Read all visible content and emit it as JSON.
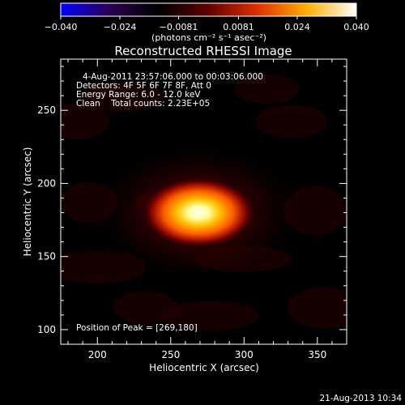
{
  "chart_data": {
    "type": "heatmap",
    "title": "Reconstructed RHESSI Image",
    "xlabel": "Heliocentric X (arcsec)",
    "ylabel": "Heliocentric Y (arcsec)",
    "xlim": [
      175,
      370
    ],
    "ylim": [
      90,
      285
    ],
    "x_ticks": [
      200,
      250,
      300,
      350
    ],
    "y_ticks": [
      100,
      150,
      200,
      250
    ],
    "colorbar": {
      "range": [
        -0.04,
        0.04
      ],
      "tick_values": [
        -0.04,
        -0.024,
        -0.0081,
        0.0081,
        0.024,
        0.04
      ],
      "tick_labels": [
        "−0.040",
        "−0.024",
        "−0.0081",
        "0.0081",
        "0.024",
        "0.040"
      ],
      "unit_label": "(photons cm⁻² s⁻¹ asec⁻²)",
      "colormap": [
        "#0000ff",
        "#2b0052",
        "#000000",
        "#600000",
        "#e03000",
        "#ffb000",
        "#ffffff"
      ]
    },
    "annotations": [
      "4-Aug-2011 23:57:06.000 to 00:03:06.000",
      "Detectors: 4F 5F 6F 7F 8F, Att 0",
      "Energy Range: 6.0 - 12.0 keV",
      "Clean    Total counts: 2.23E+05"
    ],
    "peak_label": "Position of Peak = [269,180]",
    "source": {
      "x": 269,
      "y": 180,
      "sigma_x": 16,
      "sigma_y": 10,
      "peak": 0.04
    },
    "footer_date": "21-Aug-2013 10:34"
  }
}
